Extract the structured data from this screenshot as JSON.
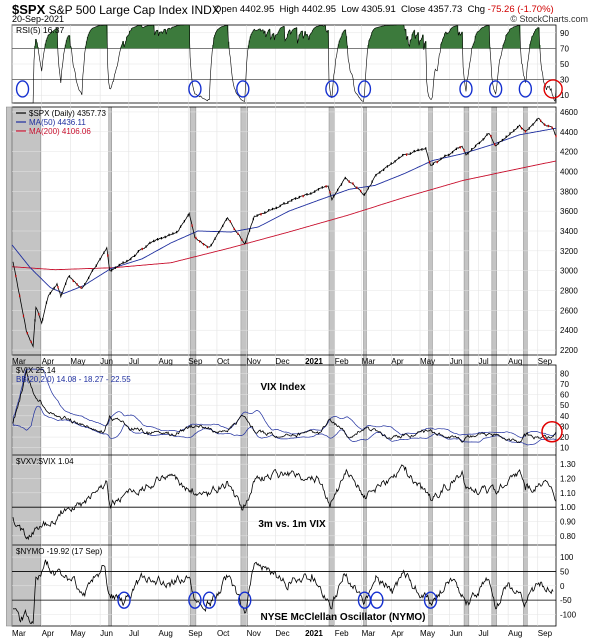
{
  "header": {
    "symbol": "$SPX",
    "name": "S&P 500 Large Cap Index",
    "exchange": "INDX",
    "date": "20-Sep-2021",
    "open_label": "Open",
    "open": "4402.95",
    "high_label": "High",
    "high": "4402.95",
    "low_label": "Low",
    "low": "4305.91",
    "close_label": "Close",
    "close": "4357.73",
    "chg_label": "Chg",
    "chg": "-75.26 (-1.70%)",
    "brand": "© StockCharts.com"
  },
  "colors": {
    "price": "#000000",
    "ma50": "#1f2f9f",
    "ma200": "#c8102e",
    "rsi_fill": "#3c7a3c",
    "highlight": "#b0b0b0",
    "circle_blue": "#1530d0",
    "circle_red": "#e00000"
  },
  "chart_data": [
    {
      "type": "line",
      "panel": "rsi",
      "legend": "RSI(5) 16.37",
      "ylim": [
        0,
        100
      ],
      "yticks": [
        "10",
        "30",
        "50",
        "70",
        "90"
      ],
      "bands": [
        30,
        70
      ],
      "last": 16.37
    },
    {
      "type": "line",
      "panel": "price",
      "legend": [
        "$SPX (Daily) 4357.73",
        "MA(50) 4436.11",
        "MA(200) 4106.06"
      ],
      "ylim": [
        2150,
        4650
      ],
      "yticks": [
        "2200",
        "2400",
        "2600",
        "2800",
        "3000",
        "3200",
        "3400",
        "3600",
        "3800",
        "4000",
        "4200",
        "4400",
        "4600"
      ],
      "x_start": "2020-03-01",
      "x_end": "2021-09-20",
      "price_anchors": [
        [
          "2020-03-02",
          3090
        ],
        [
          "2020-03-09",
          2746
        ],
        [
          "2020-03-16",
          2386
        ],
        [
          "2020-03-23",
          2237
        ],
        [
          "2020-03-26",
          2630
        ],
        [
          "2020-04-01",
          2470
        ],
        [
          "2020-04-08",
          2750
        ],
        [
          "2020-04-17",
          2870
        ],
        [
          "2020-04-21",
          2736
        ],
        [
          "2020-04-29",
          2940
        ],
        [
          "2020-05-13",
          2820
        ],
        [
          "2020-05-27",
          3036
        ],
        [
          "2020-06-08",
          3232
        ],
        [
          "2020-06-11",
          3002
        ],
        [
          "2020-06-30",
          3100
        ],
        [
          "2020-07-22",
          3276
        ],
        [
          "2020-08-21",
          3397
        ],
        [
          "2020-09-02",
          3580
        ],
        [
          "2020-09-08",
          3331
        ],
        [
          "2020-09-23",
          3237
        ],
        [
          "2020-10-12",
          3534
        ],
        [
          "2020-10-30",
          3270
        ],
        [
          "2020-11-09",
          3550
        ],
        [
          "2020-11-30",
          3622
        ],
        [
          "2020-12-31",
          3756
        ],
        [
          "2021-01-25",
          3855
        ],
        [
          "2021-01-29",
          3714
        ],
        [
          "2021-02-12",
          3934
        ],
        [
          "2021-03-04",
          3768
        ],
        [
          "2021-03-17",
          3974
        ],
        [
          "2021-04-15",
          4170
        ],
        [
          "2021-05-07",
          4232
        ],
        [
          "2021-05-12",
          4063
        ],
        [
          "2021-06-14",
          4255
        ],
        [
          "2021-06-18",
          4166
        ],
        [
          "2021-07-12",
          4384
        ],
        [
          "2021-07-19",
          4258
        ],
        [
          "2021-08-13",
          4468
        ],
        [
          "2021-08-19",
          4405
        ],
        [
          "2021-09-02",
          4537
        ],
        [
          "2021-09-10",
          4458
        ],
        [
          "2021-09-17",
          4433
        ],
        [
          "2021-09-20",
          4357
        ]
      ],
      "ma50_anchors": [
        [
          "2020-03-01",
          3260
        ],
        [
          "2020-03-20",
          3030
        ],
        [
          "2020-04-10",
          2830
        ],
        [
          "2020-04-24",
          2770
        ],
        [
          "2020-05-15",
          2850
        ],
        [
          "2020-06-12",
          3020
        ],
        [
          "2020-07-15",
          3120
        ],
        [
          "2020-08-14",
          3280
        ],
        [
          "2020-09-11",
          3400
        ],
        [
          "2020-10-16",
          3390
        ],
        [
          "2020-11-13",
          3440
        ],
        [
          "2020-12-15",
          3600
        ],
        [
          "2021-01-15",
          3710
        ],
        [
          "2021-02-16",
          3820
        ],
        [
          "2021-03-15",
          3860
        ],
        [
          "2021-04-15",
          3980
        ],
        [
          "2021-05-14",
          4110
        ],
        [
          "2021-06-15",
          4180
        ],
        [
          "2021-07-15",
          4270
        ],
        [
          "2021-08-13",
          4370
        ],
        [
          "2021-09-20",
          4436
        ]
      ],
      "ma200_anchors": [
        [
          "2020-03-01",
          3040
        ],
        [
          "2020-04-15",
          3010
        ],
        [
          "2020-06-15",
          3030
        ],
        [
          "2020-08-14",
          3080
        ],
        [
          "2020-10-15",
          3230
        ],
        [
          "2020-12-15",
          3390
        ],
        [
          "2021-02-15",
          3560
        ],
        [
          "2021-04-15",
          3740
        ],
        [
          "2021-06-15",
          3910
        ],
        [
          "2021-08-13",
          4030
        ],
        [
          "2021-09-20",
          4106
        ]
      ],
      "last": 4357.73
    },
    {
      "type": "line",
      "panel": "vix",
      "legend": [
        "$VIX 25.14",
        "BB(20,2.0) 14.08 - 18.27 - 22.55"
      ],
      "annotation": "VIX Index",
      "ylim": [
        5,
        85
      ],
      "yticks": [
        "10",
        "20",
        "30",
        "40",
        "50",
        "60",
        "70",
        "80"
      ],
      "anchors": [
        [
          "2020-03-02",
          33
        ],
        [
          "2020-03-09",
          54
        ],
        [
          "2020-03-16",
          82
        ],
        [
          "2020-03-23",
          62
        ],
        [
          "2020-03-31",
          54
        ],
        [
          "2020-04-15",
          40
        ],
        [
          "2020-05-01",
          37
        ],
        [
          "2020-05-20",
          29
        ],
        [
          "2020-06-05",
          25
        ],
        [
          "2020-06-11",
          40
        ],
        [
          "2020-06-30",
          30
        ],
        [
          "2020-07-20",
          25
        ],
        [
          "2020-08-14",
          22
        ],
        [
          "2020-09-04",
          31
        ],
        [
          "2020-09-21",
          28
        ],
        [
          "2020-10-12",
          25
        ],
        [
          "2020-10-28",
          40
        ],
        [
          "2020-11-10",
          24
        ],
        [
          "2020-12-15",
          22
        ],
        [
          "2021-01-15",
          23
        ],
        [
          "2021-01-27",
          37
        ],
        [
          "2021-02-15",
          20
        ],
        [
          "2021-03-04",
          28
        ],
        [
          "2021-04-01",
          18
        ],
        [
          "2021-05-12",
          27
        ],
        [
          "2021-06-15",
          16
        ],
        [
          "2021-06-18",
          20
        ],
        [
          "2021-07-19",
          22
        ],
        [
          "2021-08-13",
          15
        ],
        [
          "2021-08-19",
          21
        ],
        [
          "2021-09-10",
          19
        ],
        [
          "2021-09-20",
          25
        ]
      ],
      "last": 25.14
    },
    {
      "type": "line",
      "panel": "vxv_vix",
      "legend": "$VXV:$VIX 1.04",
      "annotation": "3m vs. 1m VIX",
      "ylim": [
        0.75,
        1.35
      ],
      "yticks": [
        "0.80",
        "0.90",
        "1.00",
        "1.10",
        "1.20",
        "1.30"
      ],
      "reference": 1.0,
      "anchors": [
        [
          "2020-03-02",
          0.93
        ],
        [
          "2020-03-16",
          0.78
        ],
        [
          "2020-04-01",
          0.86
        ],
        [
          "2020-04-20",
          0.94
        ],
        [
          "2020-05-15",
          1.03
        ],
        [
          "2020-06-08",
          1.18
        ],
        [
          "2020-06-11",
          1.02
        ],
        [
          "2020-07-15",
          1.14
        ],
        [
          "2020-08-14",
          1.22
        ],
        [
          "2020-09-04",
          1.1
        ],
        [
          "2020-09-21",
          1.08
        ],
        [
          "2020-10-12",
          1.18
        ],
        [
          "2020-10-28",
          0.98
        ],
        [
          "2020-11-10",
          1.2
        ],
        [
          "2020-12-15",
          1.22
        ],
        [
          "2021-01-15",
          1.2
        ],
        [
          "2021-01-27",
          1.0
        ],
        [
          "2021-02-12",
          1.23
        ],
        [
          "2021-03-04",
          1.08
        ],
        [
          "2021-04-15",
          1.26
        ],
        [
          "2021-05-12",
          1.05
        ],
        [
          "2021-06-14",
          1.25
        ],
        [
          "2021-06-18",
          1.13
        ],
        [
          "2021-07-19",
          1.1
        ],
        [
          "2021-08-13",
          1.26
        ],
        [
          "2021-08-19",
          1.12
        ],
        [
          "2021-09-10",
          1.18
        ],
        [
          "2021-09-20",
          1.04
        ]
      ],
      "last": 1.04
    },
    {
      "type": "line",
      "panel": "nymo",
      "legend": "$NYMO -19.92 (17 Sep)",
      "annotation": "NYSE McClellan Oscillator (NYMO)",
      "ylim": [
        -140,
        135
      ],
      "yticks": [
        "-100",
        "-50",
        "0",
        "50",
        "100"
      ],
      "bands": [
        -50,
        50
      ],
      "anchors": [
        [
          "2020-03-02",
          -80
        ],
        [
          "2020-03-09",
          -120
        ],
        [
          "2020-03-16",
          -100
        ],
        [
          "2020-03-23",
          -130
        ],
        [
          "2020-03-26",
          30
        ],
        [
          "2020-04-06",
          75
        ],
        [
          "2020-04-15",
          40
        ],
        [
          "2020-05-01",
          20
        ],
        [
          "2020-05-15",
          -25
        ],
        [
          "2020-06-05",
          70
        ],
        [
          "2020-06-11",
          -30
        ],
        [
          "2020-06-26",
          -60
        ],
        [
          "2020-07-15",
          30
        ],
        [
          "2020-08-14",
          10
        ],
        [
          "2020-09-02",
          30
        ],
        [
          "2020-09-08",
          -50
        ],
        [
          "2020-09-23",
          -60
        ],
        [
          "2020-10-12",
          30
        ],
        [
          "2020-10-30",
          -95
        ],
        [
          "2020-11-10",
          80
        ],
        [
          "2020-12-15",
          10
        ],
        [
          "2021-01-08",
          40
        ],
        [
          "2021-01-29",
          -80
        ],
        [
          "2021-02-10",
          40
        ],
        [
          "2021-03-04",
          -60
        ],
        [
          "2021-03-17",
          30
        ],
        [
          "2021-04-01",
          -10
        ],
        [
          "2021-04-15",
          40
        ],
        [
          "2021-05-12",
          -60
        ],
        [
          "2021-06-01",
          20
        ],
        [
          "2021-06-18",
          -65
        ],
        [
          "2021-07-12",
          20
        ],
        [
          "2021-07-19",
          -80
        ],
        [
          "2021-08-02",
          10
        ],
        [
          "2021-08-19",
          -60
        ],
        [
          "2021-09-02",
          10
        ],
        [
          "2021-09-17",
          -20
        ]
      ],
      "last": -19.92
    }
  ],
  "x_axis": {
    "month_labels": [
      [
        "2020-03-01",
        "Mar"
      ],
      [
        "2020-04-01",
        "Apr"
      ],
      [
        "2020-05-01",
        "May"
      ],
      [
        "2020-06-01",
        "Jun"
      ],
      [
        "2020-07-01",
        "Jul"
      ],
      [
        "2020-08-01",
        "Aug"
      ],
      [
        "2020-09-01",
        "Sep"
      ],
      [
        "2020-10-01",
        "Oct"
      ],
      [
        "2020-11-01",
        "Nov"
      ],
      [
        "2020-12-01",
        "Dec"
      ],
      [
        "2021-01-01",
        "2021"
      ],
      [
        "2021-02-01",
        "Feb"
      ],
      [
        "2021-03-01",
        "Mar"
      ],
      [
        "2021-04-01",
        "Apr"
      ],
      [
        "2021-05-01",
        "May"
      ],
      [
        "2021-06-01",
        "Jun"
      ],
      [
        "2021-07-01",
        "Jul"
      ],
      [
        "2021-08-01",
        "Aug"
      ],
      [
        "2021-09-01",
        "Sep"
      ]
    ],
    "highlight_ranges": [
      [
        "2020-02-24",
        "2020-03-31"
      ],
      [
        "2020-06-10",
        "2020-06-13"
      ],
      [
        "2020-09-03",
        "2020-09-09"
      ],
      [
        "2020-10-26",
        "2020-11-02"
      ],
      [
        "2021-01-26",
        "2021-02-01"
      ],
      [
        "2021-03-03",
        "2021-03-06"
      ],
      [
        "2021-05-10",
        "2021-05-14"
      ],
      [
        "2021-06-16",
        "2021-06-21"
      ],
      [
        "2021-07-15",
        "2021-07-20"
      ],
      [
        "2021-08-17",
        "2021-08-21"
      ]
    ],
    "rsi_circles": [
      [
        "2020-03-12",
        "blue"
      ],
      [
        "2020-09-08",
        "blue"
      ],
      [
        "2020-10-28",
        "blue"
      ],
      [
        "2021-01-29",
        "blue"
      ],
      [
        "2021-03-04",
        "blue"
      ],
      [
        "2021-06-18",
        "blue"
      ],
      [
        "2021-07-19",
        "blue"
      ],
      [
        "2021-08-19",
        "blue"
      ],
      [
        "2021-09-17",
        "red"
      ]
    ],
    "nymo_circles": [
      "2020-06-26",
      "2020-09-08",
      "2020-09-23",
      "2020-10-30",
      "2021-03-04",
      "2021-03-17",
      "2021-05-12"
    ]
  }
}
